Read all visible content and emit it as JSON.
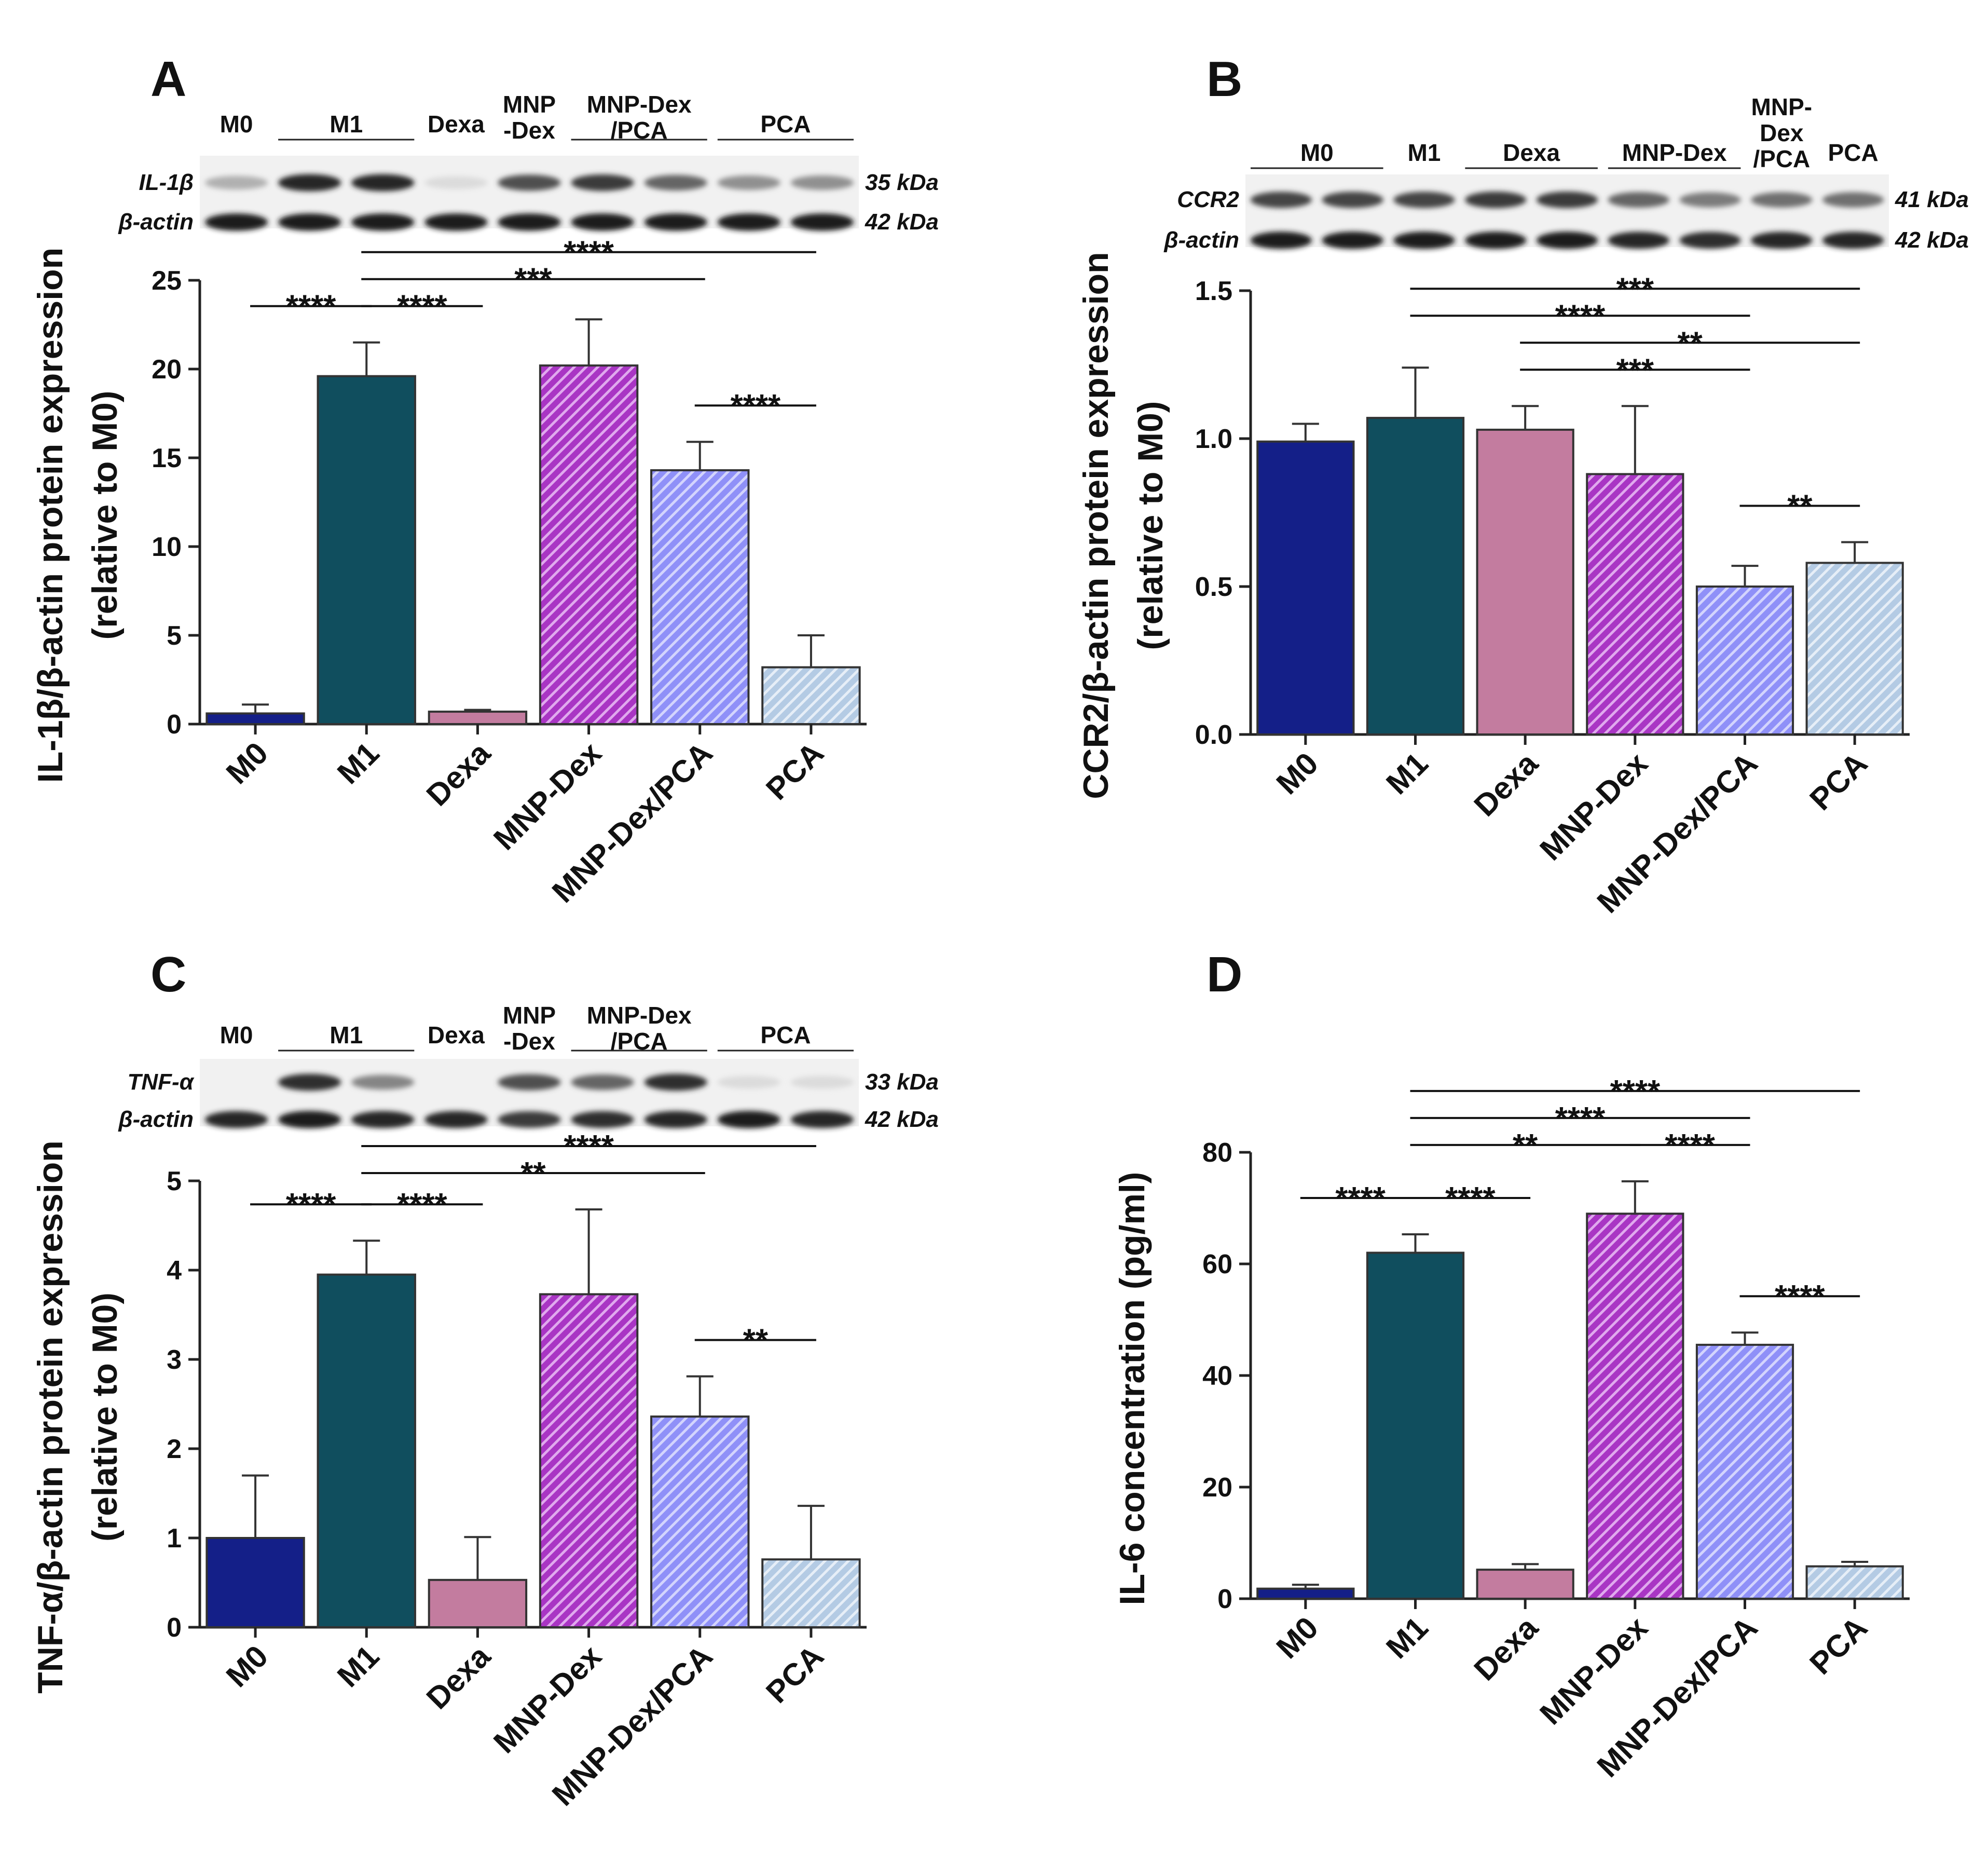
{
  "colors": {
    "M0": "#141f88",
    "M1": "#104e5e",
    "Dexa": "#c37c9f",
    "MNP-Dex": "#a935c4",
    "MNP-Dex/PCA": "#8f90f8",
    "PCA": "#b4cbe4"
  },
  "chart_data": [
    {
      "panel": "A",
      "type": "bar",
      "ylabel_line1": "IL-1β/β-actin protein expression",
      "ylabel_line2": "(relative to M0)",
      "categories": [
        "M0",
        "M1",
        "Dexa",
        "MNP-Dex",
        "MNP-Dex/PCA",
        "PCA"
      ],
      "values": [
        0.6,
        19.6,
        0.7,
        20.2,
        14.3,
        3.2
      ],
      "errors": [
        0.5,
        1.9,
        0.1,
        2.6,
        1.6,
        1.8
      ],
      "ylim": [
        0,
        25
      ],
      "yticks": [
        "0",
        "5",
        "10",
        "15",
        "20",
        "25"
      ],
      "blot": {
        "lane_groups": [
          {
            "label": "M0",
            "lanes": [
              0,
              0
            ]
          },
          {
            "label": "M1",
            "lanes": [
              1,
              2
            ]
          },
          {
            "label": "Dexa",
            "lanes": [
              3,
              3
            ]
          },
          {
            "label": "MNP\n-Dex",
            "lanes": [
              4,
              4
            ]
          },
          {
            "label": "MNP-Dex\n/PCA",
            "lanes": [
              5,
              6
            ]
          },
          {
            "label": "PCA",
            "lanes": [
              7,
              8
            ]
          }
        ],
        "bands": [
          {
            "name": "IL-1β",
            "kda": "35 kDa",
            "intensity": [
              0.25,
              0.9,
              0.9,
              0.05,
              0.7,
              0.8,
              0.6,
              0.4,
              0.4
            ]
          },
          {
            "name": "β-actin",
            "kda": "42 kDa",
            "intensity": [
              0.95,
              0.95,
              0.95,
              0.95,
              0.95,
              0.95,
              0.95,
              0.95,
              0.95
            ]
          }
        ]
      },
      "significance": [
        {
          "from": 0,
          "to": 1,
          "label": "****"
        },
        {
          "from": 1,
          "to": 2,
          "label": "****"
        },
        {
          "from": 1,
          "to": 4,
          "label": "***"
        },
        {
          "from": 1,
          "to": 5,
          "label": "****"
        },
        {
          "from": 4,
          "to": 5,
          "label": "****"
        }
      ]
    },
    {
      "panel": "B",
      "type": "bar",
      "ylabel_line1": "CCR2/β-actin protein expression",
      "ylabel_line2": "(relative to M0)",
      "categories": [
        "M0",
        "M1",
        "Dexa",
        "MNP-Dex",
        "MNP-Dex/PCA",
        "PCA"
      ],
      "values": [
        0.99,
        1.07,
        1.03,
        0.88,
        0.5,
        0.58
      ],
      "errors": [
        0.06,
        0.17,
        0.08,
        0.23,
        0.07,
        0.07
      ],
      "ylim": [
        0,
        1.5
      ],
      "yticks": [
        "0.0",
        "0.5",
        "1.0",
        "1.5"
      ],
      "blot": {
        "lane_groups": [
          {
            "label": "M0",
            "lanes": [
              0,
              1
            ]
          },
          {
            "label": "M1",
            "lanes": [
              2,
              2
            ]
          },
          {
            "label": "Dexa",
            "lanes": [
              3,
              4
            ]
          },
          {
            "label": "MNP-Dex",
            "lanes": [
              5,
              6
            ]
          },
          {
            "label": "MNP-\nDex\n/PCA",
            "lanes": [
              7,
              7
            ]
          },
          {
            "label": "PCA",
            "lanes": [
              8,
              8
            ]
          }
        ],
        "bands": [
          {
            "name": "CCR2",
            "kda": "41 kDa",
            "intensity": [
              0.75,
              0.75,
              0.75,
              0.8,
              0.8,
              0.6,
              0.5,
              0.55,
              0.55
            ]
          },
          {
            "name": "β-actin",
            "kda": "42 kDa",
            "intensity": [
              0.95,
              0.95,
              0.95,
              0.95,
              0.95,
              0.9,
              0.85,
              0.9,
              0.9
            ]
          }
        ]
      },
      "significance": [
        {
          "from": 4,
          "to": 5,
          "label": "**"
        },
        {
          "from": 2,
          "to": 5,
          "label": "**"
        },
        {
          "from": 2,
          "to": 4,
          "label": "***"
        },
        {
          "from": 1,
          "to": 4,
          "label": "****"
        },
        {
          "from": 1,
          "to": 5,
          "label": "***"
        }
      ]
    },
    {
      "panel": "C",
      "type": "bar",
      "ylabel_line1": "TNF-α/β-actin protein expression",
      "ylabel_line2": "(relative to M0)",
      "categories": [
        "M0",
        "M1",
        "Dexa",
        "MNP-Dex",
        "MNP-Dex/PCA",
        "PCA"
      ],
      "values": [
        1.0,
        3.95,
        0.53,
        3.73,
        2.36,
        0.76
      ],
      "errors": [
        0.7,
        0.38,
        0.48,
        0.95,
        0.45,
        0.6
      ],
      "ylim": [
        0,
        5
      ],
      "yticks": [
        "0",
        "1",
        "2",
        "3",
        "4",
        "5"
      ],
      "blot": {
        "lane_groups": [
          {
            "label": "M0",
            "lanes": [
              0,
              0
            ]
          },
          {
            "label": "M1",
            "lanes": [
              1,
              2
            ]
          },
          {
            "label": "Dexa",
            "lanes": [
              3,
              3
            ]
          },
          {
            "label": "MNP\n-Dex",
            "lanes": [
              4,
              4
            ]
          },
          {
            "label": "MNP-Dex\n/PCA",
            "lanes": [
              5,
              6
            ]
          },
          {
            "label": "PCA",
            "lanes": [
              7,
              8
            ]
          }
        ],
        "bands": [
          {
            "name": "TNF-α",
            "kda": "33 kDa",
            "intensity": [
              0.02,
              0.85,
              0.45,
              0.02,
              0.7,
              0.6,
              0.85,
              0.05,
              0.05
            ]
          },
          {
            "name": "β-actin",
            "kda": "42 kDa",
            "intensity": [
              0.9,
              0.95,
              0.9,
              0.9,
              0.8,
              0.85,
              0.9,
              0.95,
              0.9
            ]
          }
        ]
      },
      "significance": [
        {
          "from": 0,
          "to": 1,
          "label": "****"
        },
        {
          "from": 1,
          "to": 2,
          "label": "****"
        },
        {
          "from": 1,
          "to": 4,
          "label": "**"
        },
        {
          "from": 1,
          "to": 5,
          "label": "****"
        },
        {
          "from": 4,
          "to": 5,
          "label": "**"
        }
      ]
    },
    {
      "panel": "D",
      "type": "bar",
      "ylabel_line1": "IL-6 concentration (pg/ml)",
      "ylabel_line2": "",
      "categories": [
        "M0",
        "M1",
        "Dexa",
        "MNP-Dex",
        "MNP-Dex/PCA",
        "PCA"
      ],
      "values": [
        1.8,
        62.0,
        5.2,
        69.0,
        45.5,
        5.8
      ],
      "errors": [
        0.7,
        3.3,
        1.0,
        5.8,
        2.2,
        0.8
      ],
      "ylim": [
        0,
        80
      ],
      "yticks": [
        "0",
        "20",
        "40",
        "60",
        "80"
      ],
      "significance": [
        {
          "from": 0,
          "to": 1,
          "label": "****"
        },
        {
          "from": 1,
          "to": 2,
          "label": "****"
        },
        {
          "from": 1,
          "to": 3,
          "label": "**"
        },
        {
          "from": 3,
          "to": 4,
          "label": "****"
        },
        {
          "from": 4,
          "to": 5,
          "label": "****"
        },
        {
          "from": 1,
          "to": 4,
          "label": "****"
        },
        {
          "from": 1,
          "to": 5,
          "label": "****"
        }
      ]
    }
  ]
}
